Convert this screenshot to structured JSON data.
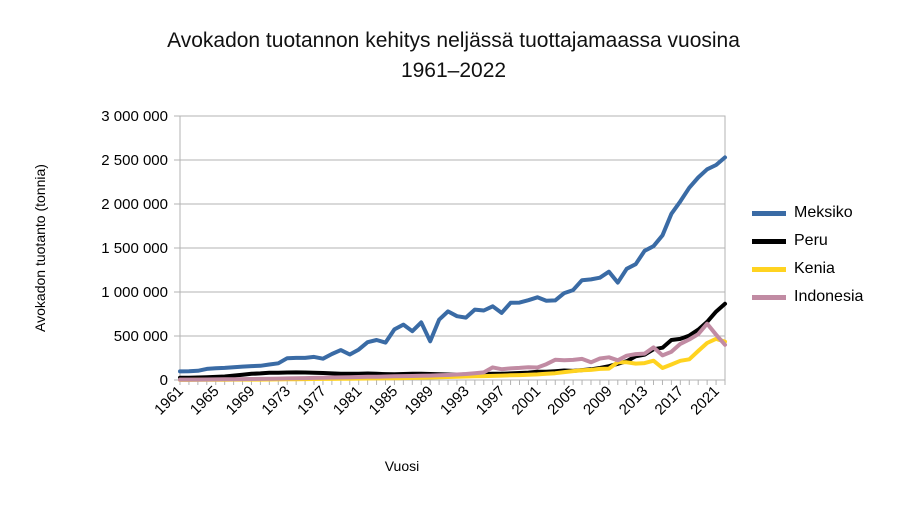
{
  "chart_data": {
    "type": "line",
    "title": "Avokadon tuotannon kehitys neljässä tuottajamaassa vuosina 1961–2022",
    "title_lines": [
      "Avokadon tuotannon kehitys neljässä tuottajamaassa vuosina",
      "1961–2022"
    ],
    "xlabel": "Vuosi",
    "ylabel": "Avokadon tuotanto (tonnia)",
    "x_start": 1961,
    "x_end": 2022,
    "x_step": 1,
    "x_tick_labels": [
      "1961",
      "1965",
      "1969",
      "1973",
      "1977",
      "1981",
      "1985",
      "1989",
      "1993",
      "1997",
      "2001",
      "2005",
      "2009",
      "2013",
      "2017",
      "2021"
    ],
    "ylim": [
      0,
      3000000
    ],
    "y_tick_step": 500000,
    "y_tick_labels": [
      "0",
      "500 000",
      "1 000 000",
      "1 500 000",
      "2 000 000",
      "2 500 000",
      "3 000 000"
    ],
    "grid": "horizontal",
    "grid_color": "#b3b3b3",
    "legend_position": "right",
    "series": [
      {
        "name": "Meksiko",
        "color": "#3A6BA5",
        "values": [
          98000,
          99000,
          104000,
          126000,
          133000,
          137000,
          145000,
          152000,
          158000,
          161000,
          176000,
          190000,
          248000,
          251000,
          251000,
          262000,
          242000,
          295000,
          340000,
          290000,
          345000,
          430000,
          455000,
          425000,
          575000,
          630000,
          555000,
          655000,
          440000,
          685000,
          780000,
          725000,
          709000,
          800000,
          790000,
          838000,
          762000,
          877000,
          879000,
          907000,
          940000,
          901000,
          905000,
          987000,
          1022000,
          1134000,
          1143000,
          1162000,
          1231000,
          1107000,
          1264000,
          1316000,
          1468000,
          1521000,
          1644000,
          1889000,
          2030000,
          2185000,
          2301000,
          2394000,
          2443000,
          2530000
        ]
      },
      {
        "name": "Peru",
        "color": "#000000",
        "values": [
          25000,
          26000,
          28000,
          32000,
          35000,
          40000,
          50000,
          60000,
          70000,
          75000,
          82000,
          83000,
          85000,
          86000,
          85000,
          83000,
          79000,
          75000,
          72000,
          70000,
          72000,
          74000,
          70000,
          67000,
          65000,
          68000,
          70000,
          72000,
          68000,
          65000,
          63000,
          61000,
          64000,
          66000,
          68000,
          70000,
          72000,
          75000,
          79000,
          84000,
          93000,
          94000,
          100000,
          108000,
          103000,
          113000,
          122000,
          136000,
          157000,
          184000,
          214000,
          269000,
          288000,
          349000,
          367000,
          455000,
          467000,
          505000,
          572000,
          660000,
          777000,
          866000
        ]
      },
      {
        "name": "Kenia",
        "color": "#FFD320",
        "values": [
          1000,
          1000,
          2000,
          2000,
          3000,
          3000,
          4000,
          4000,
          5000,
          5000,
          6000,
          7000,
          8000,
          9000,
          10000,
          11000,
          12000,
          13000,
          14000,
          15000,
          16000,
          17000,
          18000,
          19000,
          20000,
          22000,
          24000,
          26000,
          28000,
          31000,
          34000,
          37000,
          40000,
          42000,
          44000,
          47000,
          50000,
          53000,
          56000,
          59000,
          64000,
          70000,
          77000,
          90000,
          101000,
          110000,
          115000,
          126000,
          130000,
          202000,
          201000,
          186000,
          192000,
          219000,
          136000,
          176000,
          218000,
          235000,
          330000,
          420000,
          468000,
          435000
        ]
      },
      {
        "name": "Indonesia",
        "color": "#C18BA3",
        "values": [
          4000,
          5000,
          5000,
          6000,
          7000,
          8000,
          9000,
          10000,
          11000,
          13000,
          14000,
          16000,
          18000,
          20000,
          22000,
          24000,
          26000,
          28000,
          30000,
          32000,
          34000,
          36000,
          38000,
          40000,
          42000,
          44000,
          46000,
          48000,
          50000,
          53000,
          57000,
          62000,
          68000,
          76000,
          86000,
          143000,
          123000,
          132000,
          138000,
          146000,
          142000,
          180000,
          230000,
          225000,
          228000,
          240000,
          201000,
          244000,
          258000,
          224000,
          276000,
          294000,
          300000,
          370000,
          280000,
          320000,
          410000,
          460000,
          520000,
          640000,
          515000,
          400000
        ]
      }
    ]
  }
}
